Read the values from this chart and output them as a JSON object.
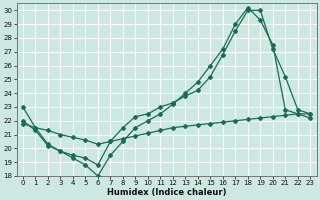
{
  "xlabel": "Humidex (Indice chaleur)",
  "background_color": "#cce8e0",
  "grid_color": "#ffffff",
  "line_color": "#1a6b5a",
  "xlim": [
    -0.5,
    23.5
  ],
  "ylim": [
    18,
    30.5
  ],
  "xticks": [
    0,
    1,
    2,
    3,
    4,
    5,
    6,
    7,
    8,
    9,
    10,
    11,
    12,
    13,
    14,
    15,
    16,
    17,
    18,
    19,
    20,
    21,
    22,
    23
  ],
  "yticks": [
    18,
    19,
    20,
    21,
    22,
    23,
    24,
    25,
    26,
    27,
    28,
    29,
    30
  ],
  "line1_x": [
    0,
    1,
    2,
    3,
    4,
    5,
    6,
    7,
    8,
    9,
    10,
    11,
    12,
    13,
    14,
    15,
    16,
    17,
    18,
    19,
    20,
    21,
    22,
    23
  ],
  "line1_y": [
    23,
    21.5,
    20.3,
    19.8,
    19.5,
    19.3,
    18.8,
    20.5,
    21.5,
    22.3,
    22.5,
    23.0,
    23.3,
    23.8,
    24.2,
    25.2,
    26.8,
    28.5,
    30.0,
    30.0,
    27.2,
    25.2,
    22.8,
    22.5
  ],
  "line2_x": [
    0,
    1,
    2,
    3,
    4,
    5,
    6,
    7,
    8,
    9,
    10,
    11,
    12,
    13,
    14,
    15,
    16,
    17,
    18,
    19,
    20,
    21,
    22,
    23
  ],
  "line2_y": [
    22.0,
    21.3,
    20.2,
    19.8,
    19.3,
    18.8,
    18.0,
    19.5,
    20.5,
    21.5,
    22.0,
    22.5,
    23.2,
    24.0,
    24.8,
    26.0,
    27.2,
    29.0,
    30.2,
    29.3,
    27.5,
    22.8,
    22.5,
    22.2
  ],
  "line3_x": [
    0,
    1,
    2,
    3,
    4,
    5,
    6,
    7,
    8,
    9,
    10,
    11,
    12,
    13,
    14,
    15,
    16,
    17,
    18,
    19,
    20,
    21,
    22,
    23
  ],
  "line3_y": [
    21.8,
    21.5,
    21.3,
    21.0,
    20.8,
    20.6,
    20.3,
    20.5,
    20.7,
    20.9,
    21.1,
    21.3,
    21.5,
    21.6,
    21.7,
    21.8,
    21.9,
    22.0,
    22.1,
    22.2,
    22.3,
    22.4,
    22.5,
    22.5
  ]
}
